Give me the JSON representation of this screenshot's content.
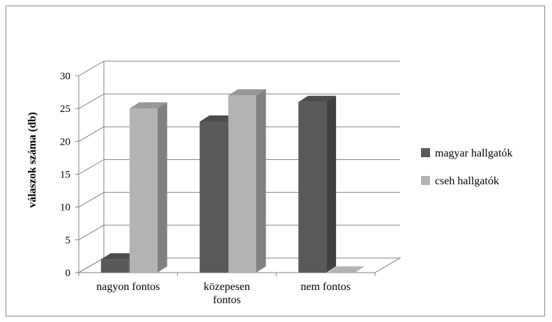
{
  "chart_data": {
    "type": "bar",
    "three_d": true,
    "categories": [
      "nagyon fontos",
      "közepesen\nfontos",
      "nem fontos"
    ],
    "series": [
      {
        "name": "magyar hallgatók",
        "values": [
          2,
          23,
          26
        ],
        "color": "#595959"
      },
      {
        "name": "cseh hallgatók",
        "values": [
          25,
          27,
          0
        ],
        "color": "#b3b3b3"
      }
    ],
    "ylabel": "válaszok száma (db)",
    "ylim": [
      0,
      30
    ],
    "yticks": [
      0,
      5,
      10,
      15,
      20,
      25,
      30
    ],
    "grid": true,
    "legend_position": "right"
  }
}
